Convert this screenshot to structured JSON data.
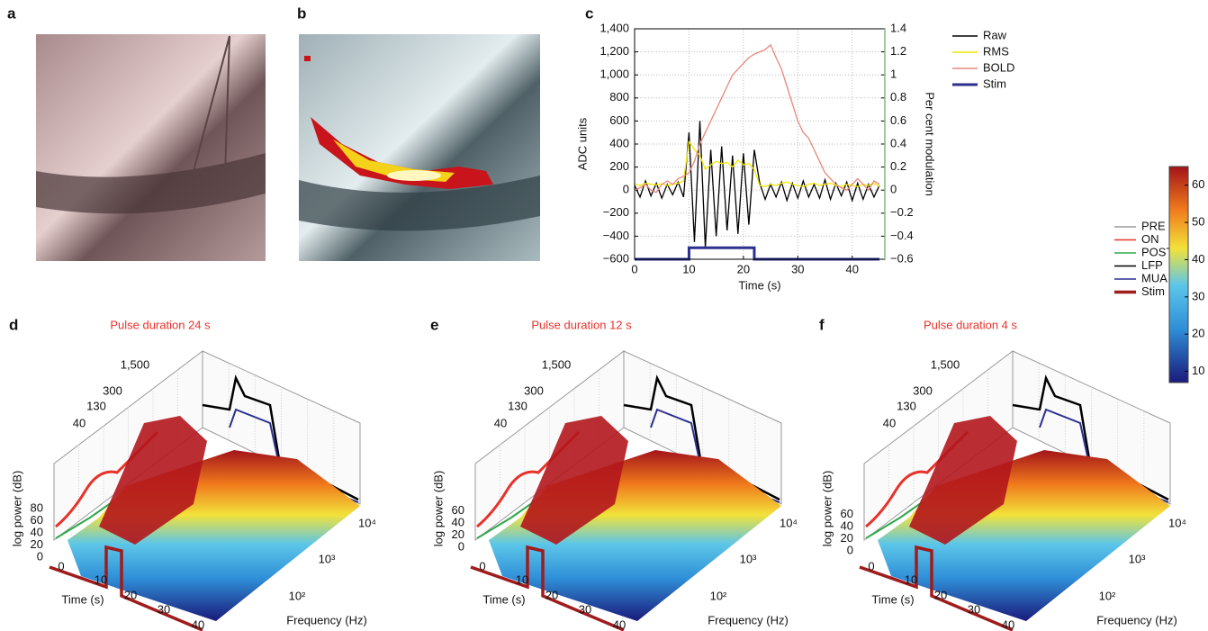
{
  "panels": {
    "a": "a",
    "b": "b",
    "c": "c",
    "d": "d",
    "e": "e",
    "f": "f"
  },
  "chart_data": {
    "type": "line",
    "xlabel": "Time (s)",
    "ylabel": "ADC units",
    "y2label": "Per cent modulation",
    "x": [
      0,
      1,
      2,
      3,
      4,
      5,
      6,
      7,
      8,
      9,
      10,
      11,
      12,
      13,
      14,
      15,
      16,
      17,
      18,
      19,
      20,
      21,
      22,
      23,
      24,
      25,
      26,
      27,
      28,
      29,
      30,
      31,
      32,
      33,
      34,
      35,
      36,
      37,
      38,
      39,
      40,
      41,
      42,
      43,
      44,
      45
    ],
    "series": [
      {
        "name": "Raw",
        "color": "#000000",
        "values": [
          40,
          -60,
          80,
          -50,
          60,
          -70,
          50,
          -40,
          70,
          -60,
          500,
          -450,
          600,
          -500,
          350,
          -400,
          380,
          -350,
          300,
          -380,
          320,
          -300,
          350,
          60,
          -80,
          50,
          -60,
          70,
          -90,
          60,
          -70,
          80,
          -60,
          50,
          -70,
          90,
          -80,
          60,
          -50,
          70,
          -90,
          60,
          -80,
          50,
          -60,
          40
        ]
      },
      {
        "name": "RMS",
        "color": "#f2e600",
        "values": [
          50,
          40,
          60,
          50,
          45,
          55,
          40,
          50,
          60,
          80,
          420,
          350,
          300,
          180,
          220,
          250,
          230,
          240,
          200,
          260,
          220,
          230,
          180,
          40,
          30,
          50,
          40,
          60,
          70,
          50,
          40,
          30,
          50,
          60,
          40,
          50,
          60,
          40,
          30,
          50,
          40,
          30,
          50,
          40,
          60,
          30
        ]
      },
      {
        "name": "BOLD",
        "color": "#e8877a",
        "axis": "y2",
        "values": [
          0,
          0.02,
          0.05,
          0,
          -0.02,
          0.05,
          0.08,
          0.05,
          0.1,
          0.12,
          0.15,
          0.25,
          0.4,
          0.5,
          0.6,
          0.7,
          0.8,
          0.9,
          1.0,
          1.05,
          1.1,
          1.15,
          1.18,
          1.2,
          1.22,
          1.26,
          1.15,
          1.05,
          0.9,
          0.75,
          0.6,
          0.5,
          0.45,
          0.35,
          0.25,
          0.15,
          0.1,
          0.05,
          0.02,
          0,
          0.05,
          0.1,
          0.05,
          0,
          0.08,
          0.05
        ]
      },
      {
        "name": "Stim",
        "color": "#2b2f8f",
        "x": [
          0,
          10,
          10,
          22,
          22,
          45
        ],
        "values": [
          -600,
          -600,
          -500,
          -500,
          -600,
          -600
        ]
      }
    ],
    "xlim": [
      0,
      46
    ],
    "xticks": [
      0,
      10,
      20,
      30,
      40
    ],
    "ylim": [
      -600,
      1400
    ],
    "yticks": [
      {
        "value": -600,
        "label": "−600"
      },
      {
        "value": -400,
        "label": "−400"
      },
      {
        "value": -200,
        "label": "−200"
      },
      0,
      200,
      400,
      600,
      800,
      {
        "value": 1000,
        "label": "1,000"
      },
      {
        "value": 1200,
        "label": "1,200"
      },
      {
        "value": 1400,
        "label": "1,400"
      }
    ],
    "y2lim": [
      -0.6,
      1.4
    ],
    "y2ticks": [
      {
        "value": -0.6,
        "label": "−0.6"
      },
      {
        "value": -0.4,
        "label": "−0.4"
      },
      {
        "value": -0.2,
        "label": "−0.2"
      },
      0,
      0.2,
      0.4,
      0.6,
      0.8,
      1.0,
      1.2,
      1.4
    ],
    "grid": true
  },
  "surface_legend": [
    {
      "name": "PRE",
      "color": "#9a9a9a"
    },
    {
      "name": "ON",
      "color": "#e8312a"
    },
    {
      "name": "POST",
      "color": "#2ea84a"
    },
    {
      "name": "LFP",
      "color": "#000000"
    },
    {
      "name": "MUA",
      "color": "#2b2f8f"
    },
    {
      "name": "Stim",
      "color": "#a01c1c"
    }
  ],
  "colorbar": {
    "ticks": [
      10,
      20,
      30,
      40,
      50,
      60
    ],
    "lim": [
      7,
      65
    ]
  },
  "surfaces": [
    {
      "title": "Pulse duration 24 s",
      "zlabel": "log power (dB)",
      "zticks": [
        "0",
        "20",
        "40",
        "60",
        "80"
      ],
      "band_labels": [
        "40",
        "130",
        "300",
        "1,500"
      ],
      "xlabel": "Time (s)",
      "xticks": [
        "0",
        "10",
        "20",
        "30",
        "40"
      ],
      "ylabel": "Frequency (Hz)",
      "yticks": [
        "10²",
        "10³",
        "10⁴"
      ]
    },
    {
      "title": "Pulse duration 12 s",
      "zlabel": "log power (dB)",
      "zticks": [
        "0",
        "20",
        "40",
        "60"
      ],
      "band_labels": [
        "40",
        "130",
        "300",
        "1,500"
      ],
      "xlabel": "Time (s)",
      "xticks": [
        "0",
        "10",
        "20",
        "30",
        "40"
      ],
      "ylabel": "Frequency (Hz)",
      "yticks": [
        "10²",
        "10³",
        "10⁴"
      ]
    },
    {
      "title": "Pulse duration 4 s",
      "zlabel": "log power (dB)",
      "zticks": [
        "0",
        "20",
        "40",
        "60"
      ],
      "band_labels": [
        "40",
        "130",
        "300",
        "1,500"
      ],
      "xlabel": "Time (s)",
      "xticks": [
        "0",
        "10",
        "20",
        "30",
        "40"
      ],
      "ylabel": "Frequency (Hz)",
      "yticks": [
        "10²",
        "10³",
        "10⁴"
      ]
    }
  ]
}
